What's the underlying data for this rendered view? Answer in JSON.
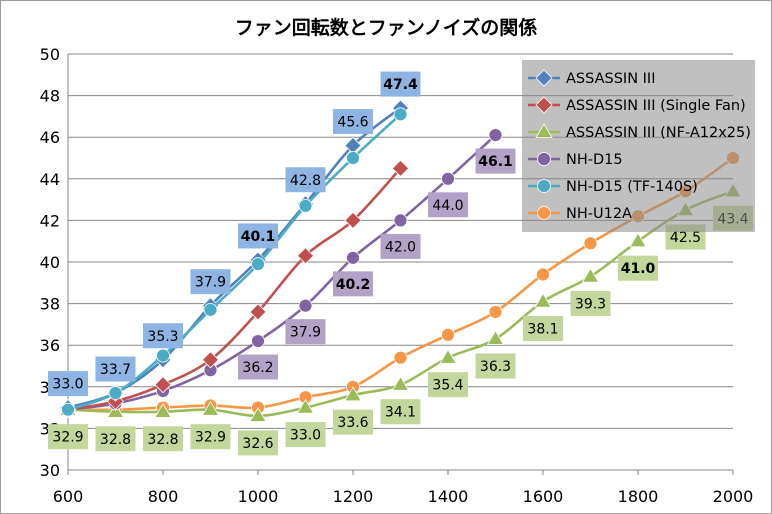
{
  "chart_data": {
    "type": "line",
    "title": "ファン回転数とファンノイズの関係",
    "xlabel": "",
    "ylabel": "",
    "xlim": [
      600,
      2000
    ],
    "ylim": [
      30,
      50
    ],
    "x_ticks": [
      "600",
      "800",
      "1000",
      "1200",
      "1400",
      "1600",
      "1800",
      "2000"
    ],
    "y_ticks": [
      "30",
      "32",
      "34",
      "36",
      "38",
      "40",
      "42",
      "44",
      "46",
      "48",
      "50"
    ],
    "grid": true,
    "legend_position": "top-right",
    "series": [
      {
        "name": "ASSASSIN III",
        "color": "#4f81bd",
        "marker": "diamond",
        "x": [
          600,
          700,
          800,
          900,
          1000,
          1100,
          1200,
          1300
        ],
        "values": [
          33.0,
          33.7,
          35.3,
          37.9,
          40.1,
          42.8,
          45.6,
          47.4
        ],
        "labels": [
          "33.0",
          "33.7",
          "35.3",
          "37.9",
          "40.1",
          "42.8",
          "45.6",
          "47.4"
        ]
      },
      {
        "name": "ASSASSIN III (Single Fan)",
        "color": "#c0504d",
        "marker": "diamond",
        "x": [
          600,
          700,
          800,
          900,
          1000,
          1100,
          1200,
          1300
        ],
        "values": [
          32.9,
          33.3,
          34.1,
          35.3,
          37.6,
          40.3,
          42.0,
          44.5
        ]
      },
      {
        "name": "ASSASSIN III (NF-A12x25)",
        "color": "#9bbb59",
        "marker": "triangle",
        "x": [
          600,
          700,
          800,
          900,
          1000,
          1100,
          1200,
          1300,
          1400,
          1500,
          1600,
          1700,
          1800,
          1900,
          2000
        ],
        "values": [
          32.9,
          32.8,
          32.8,
          32.9,
          32.6,
          33.0,
          33.6,
          34.1,
          35.4,
          36.3,
          38.1,
          39.3,
          41.0,
          42.5,
          43.4
        ],
        "labels": [
          "32.9",
          "32.8",
          "32.8",
          "32.9",
          "32.6",
          "33.0",
          "33.6",
          "34.1",
          "35.4",
          "36.3",
          "38.1",
          "39.3",
          "41.0",
          "42.5",
          "43.4"
        ]
      },
      {
        "name": "NH-D15",
        "color": "#8064a2",
        "marker": "circle",
        "x": [
          600,
          700,
          800,
          900,
          1000,
          1100,
          1200,
          1300,
          1400,
          1500
        ],
        "values": [
          32.9,
          33.2,
          33.8,
          34.8,
          36.2,
          37.9,
          40.2,
          42.0,
          44.0,
          46.1
        ],
        "labels": [
          "",
          "",
          "",
          "",
          "36.2",
          "37.9",
          "40.2",
          "42.0",
          "44.0",
          "46.1"
        ]
      },
      {
        "name": "NH-D15 (TF-140S)",
        "color": "#4bacc6",
        "marker": "circle",
        "x": [
          600,
          700,
          800,
          900,
          1000,
          1100,
          1200,
          1300
        ],
        "values": [
          32.9,
          33.7,
          35.5,
          37.7,
          39.9,
          42.7,
          45.0,
          47.1
        ]
      },
      {
        "name": "NH-U12A",
        "color": "#f79646",
        "marker": "circle",
        "x": [
          600,
          700,
          800,
          900,
          1000,
          1100,
          1200,
          1300,
          1400,
          1500,
          1600,
          1700,
          1800,
          1900,
          2000
        ],
        "values": [
          32.9,
          32.9,
          33.0,
          33.1,
          33.0,
          33.5,
          34.0,
          35.4,
          36.5,
          37.6,
          39.4,
          40.9,
          42.2,
          43.4,
          45.0
        ]
      }
    ]
  }
}
